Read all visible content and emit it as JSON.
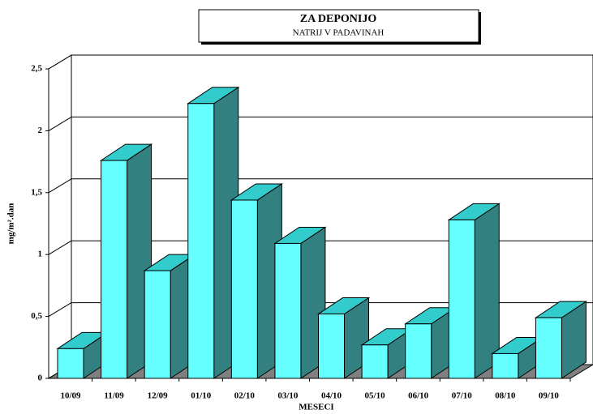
{
  "chart_data": {
    "type": "bar3d",
    "title": "ZA DEPONIJO",
    "subtitle": "NATRIJ V PADAVINAH",
    "x_label": "MESECI",
    "y_label": "mg/m².dan",
    "categories": [
      "10/09",
      "11/09",
      "12/09",
      "01/10",
      "02/10",
      "03/10",
      "04/10",
      "05/10",
      "06/10",
      "07/10",
      "08/10",
      "09/10"
    ],
    "values": [
      0.24,
      1.76,
      0.87,
      2.22,
      1.44,
      1.09,
      0.52,
      0.27,
      0.44,
      1.28,
      0.2,
      0.49
    ],
    "color": "#66ffff",
    "ylim": [
      0,
      2.5
    ],
    "yticks": [
      0,
      {
        "value": 0.5,
        "label": "0,5"
      },
      1,
      {
        "value": 1.5,
        "label": "1,5"
      },
      2,
      {
        "value": 2.5,
        "label": "2,5"
      }
    ],
    "grid": true
  }
}
